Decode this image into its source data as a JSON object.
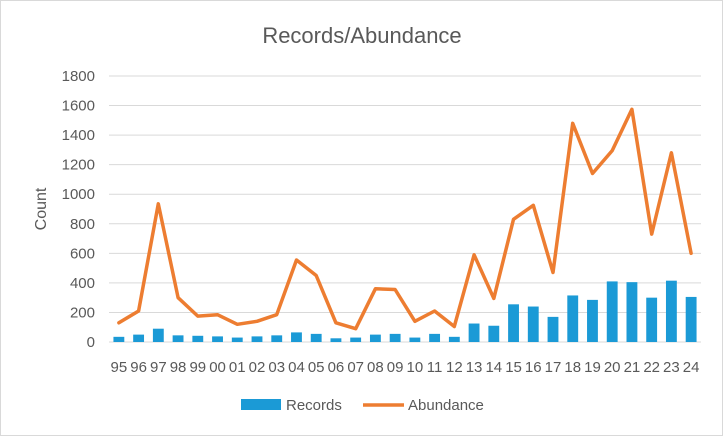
{
  "chart_data": {
    "type": "bar+line",
    "title": "Records/Abundance",
    "xlabel": "",
    "ylabel": "Count",
    "ylim": [
      0,
      1800
    ],
    "yticks": [
      0,
      200,
      400,
      600,
      800,
      1000,
      1200,
      1400,
      1600,
      1800
    ],
    "grid": "horizontal",
    "legend_position": "bottom",
    "categories": [
      "95",
      "96",
      "97",
      "98",
      "99",
      "00",
      "01",
      "02",
      "03",
      "04",
      "05",
      "06",
      "07",
      "08",
      "09",
      "10",
      "11",
      "12",
      "13",
      "14",
      "15",
      "16",
      "17",
      "18",
      "19",
      "20",
      "21",
      "22",
      "23",
      "24"
    ],
    "series": [
      {
        "name": "Records",
        "type": "bar",
        "color": "#1b9ad6",
        "values": [
          35,
          50,
          90,
          45,
          42,
          38,
          30,
          38,
          45,
          65,
          55,
          25,
          30,
          50,
          55,
          30,
          55,
          35,
          125,
          110,
          255,
          240,
          170,
          315,
          285,
          410,
          405,
          300,
          415,
          305
        ]
      },
      {
        "name": "Abundance",
        "type": "line",
        "color": "#ed7d31",
        "values": [
          130,
          210,
          935,
          300,
          175,
          185,
          120,
          140,
          185,
          555,
          450,
          130,
          90,
          360,
          355,
          140,
          210,
          105,
          590,
          295,
          830,
          925,
          470,
          1480,
          1140,
          1295,
          1575,
          730,
          1280,
          600
        ]
      }
    ]
  }
}
